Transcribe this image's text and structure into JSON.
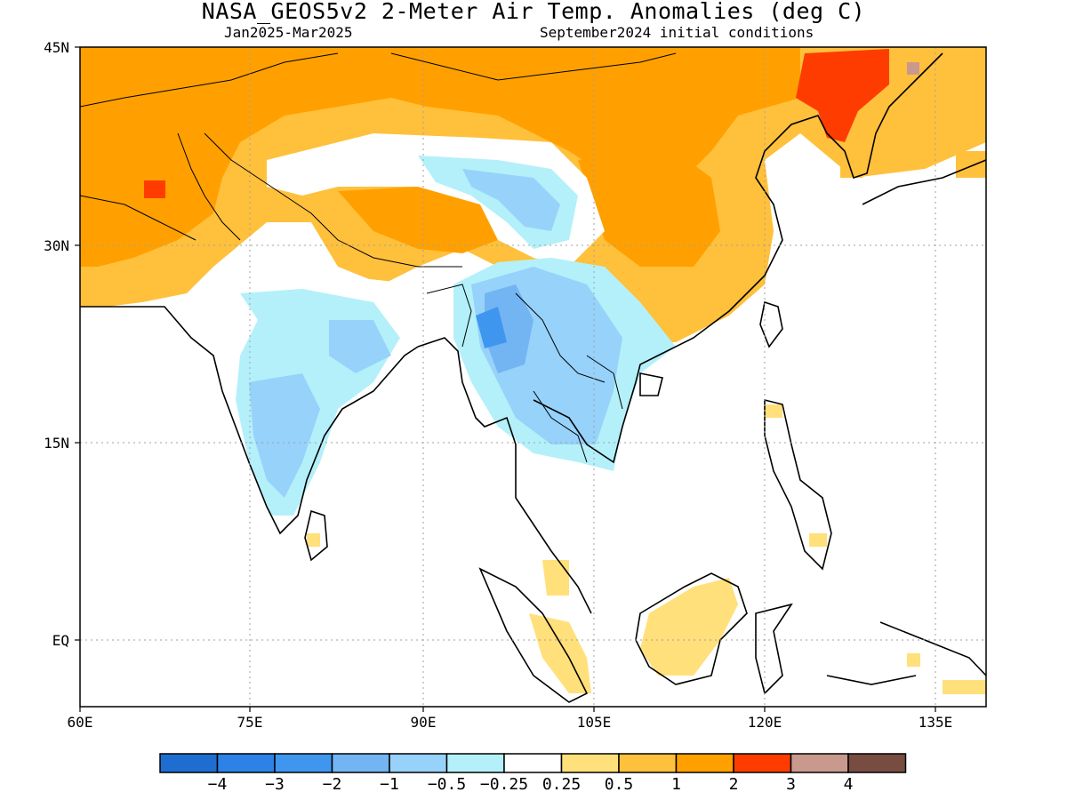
{
  "title": "NASA_GEOS5v2 2-Meter Air Temp. Anomalies (deg C)",
  "subtitle_left": "Jan2025-Mar2025",
  "subtitle_right": "September2024 initial conditions",
  "map": {
    "lon_range": [
      60,
      140
    ],
    "lat_range": [
      -5,
      45
    ],
    "x_ticks": [
      "60E",
      "75E",
      "90E",
      "105E",
      "120E",
      "135E"
    ],
    "y_ticks": [
      "45N",
      "30N",
      "15N",
      "EQ"
    ],
    "gridlines": "dotted",
    "regions": [
      {
        "name": "Central Asia / Afghanistan-Pakistan",
        "anomaly_class": "1 to 2"
      },
      {
        "name": "Iran-Afghanistan border hotspot",
        "anomaly_class": "2 to 3"
      },
      {
        "name": "Northern China / Mongolia",
        "anomaly_class": "0.5 to 1"
      },
      {
        "name": "NE China / Korea",
        "anomaly_class": "2 to 3"
      },
      {
        "name": "Tibetan Plateau",
        "anomaly_class": "-1 to -0.25"
      },
      {
        "name": "India",
        "anomaly_class": "-1 to -0.25"
      },
      {
        "name": "Myanmar / Thailand / Laos",
        "anomaly_class": "-2 to -0.5"
      },
      {
        "name": "Southern China",
        "anomaly_class": "0.25 to 1"
      },
      {
        "name": "Borneo / Sumatra / Philippines",
        "anomaly_class": "0.25 to 0.5"
      },
      {
        "name": "Oceans",
        "anomaly_class": "-0.25 to 0.25"
      }
    ]
  },
  "colorbar": {
    "colors": [
      "#1e6ed1",
      "#2c82e6",
      "#3f96ef",
      "#73b4f3",
      "#96d2fa",
      "#b4f0fa",
      "#ffffff",
      "#ffe07a",
      "#ffc03c",
      "#ffa000",
      "#ff3c00",
      "#c8998c",
      "#784c41"
    ],
    "labels": [
      "-4",
      "-3",
      "-2",
      "-1",
      "-0.5",
      "-0.25",
      "0.25",
      "0.5",
      "1",
      "2",
      "3",
      "4"
    ]
  }
}
